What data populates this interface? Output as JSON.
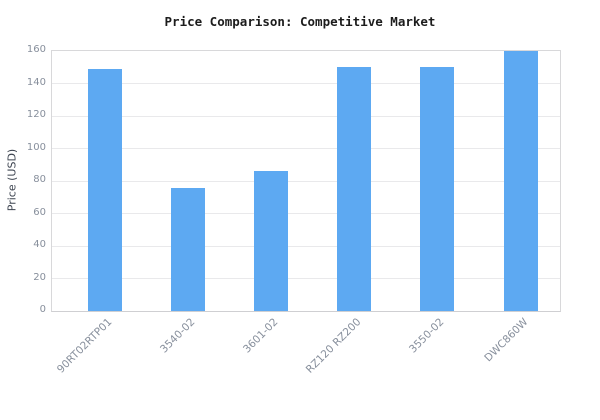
{
  "title": "Price Comparison: Competitive Market",
  "chart_data": {
    "type": "bar",
    "title": "Price Comparison: Competitive Market",
    "categories": [
      "90RT02RTP01",
      "3540-02",
      "3601-02",
      "RZ120 RZ200",
      "3550-02",
      "DWC860W"
    ],
    "values": [
      149,
      76,
      86,
      150,
      150,
      160
    ],
    "xlabel": "",
    "ylabel": "Price (USD)",
    "ylim": [
      0,
      160
    ],
    "yticks": [
      0,
      20,
      40,
      60,
      80,
      100,
      120,
      140,
      160
    ],
    "grid": "horizontal",
    "legend": "none",
    "bar_color": "#5da9f2",
    "colors": {
      "bar": "#5da9f2",
      "title_text": "#1c1c1c",
      "axis_label_text": "#3d4450",
      "tick_text": "#878f9c",
      "gridline": "#e9e9eb",
      "frame": "#d8d8da",
      "background": "#ffffff"
    }
  }
}
